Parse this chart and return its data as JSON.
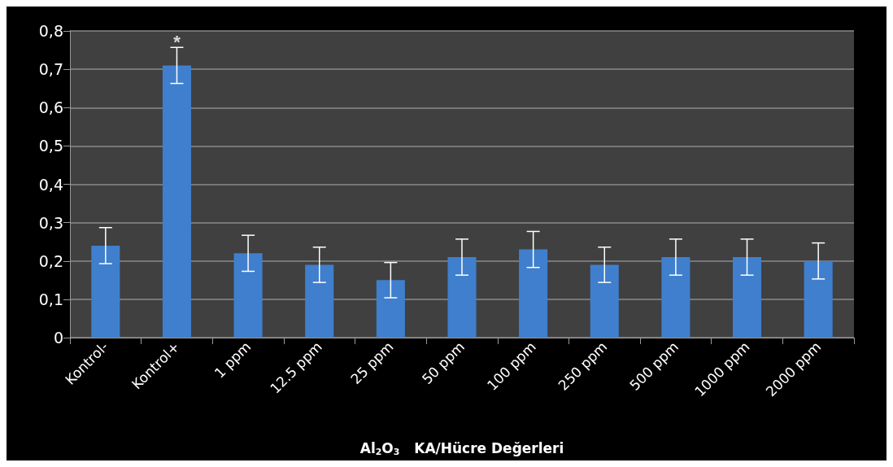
{
  "chart_data": {
    "type": "bar",
    "xlabel": "Al$_{2}$O$_{3}$   KA/Hücre Değerleri",
    "categories": [
      "Kontrol-",
      "Kontrol+",
      "1 ppm",
      "12.5 ppm",
      "25 ppm",
      "50 ppm",
      "100 ppm",
      "250 ppm",
      "500 ppm",
      "1000 ppm",
      "2000 ppm"
    ],
    "values": [
      0.24,
      0.71,
      0.22,
      0.19,
      0.15,
      0.21,
      0.23,
      0.19,
      0.21,
      0.21,
      0.2
    ],
    "errors": [
      0.047,
      0.047,
      0.047,
      0.046,
      0.046,
      0.047,
      0.047,
      0.046,
      0.047,
      0.047,
      0.047
    ],
    "color": "#3f7fce",
    "ylim": [
      0,
      0.8
    ],
    "yticks": [
      {
        "value": 0,
        "label": "0"
      },
      {
        "value": 0.1,
        "label": "0,1"
      },
      {
        "value": 0.2,
        "label": "0,2"
      },
      {
        "value": 0.3,
        "label": "0,3"
      },
      {
        "value": 0.4,
        "label": "0,4"
      },
      {
        "value": 0.5,
        "label": "0,5"
      },
      {
        "value": 0.6,
        "label": "0,6"
      },
      {
        "value": 0.7,
        "label": "0,7"
      },
      {
        "value": 0.8,
        "label": "0,8"
      }
    ],
    "annotations": [
      {
        "text": "*",
        "x": "Kontrol+",
        "y": 0.757
      }
    ],
    "grid": "y"
  }
}
